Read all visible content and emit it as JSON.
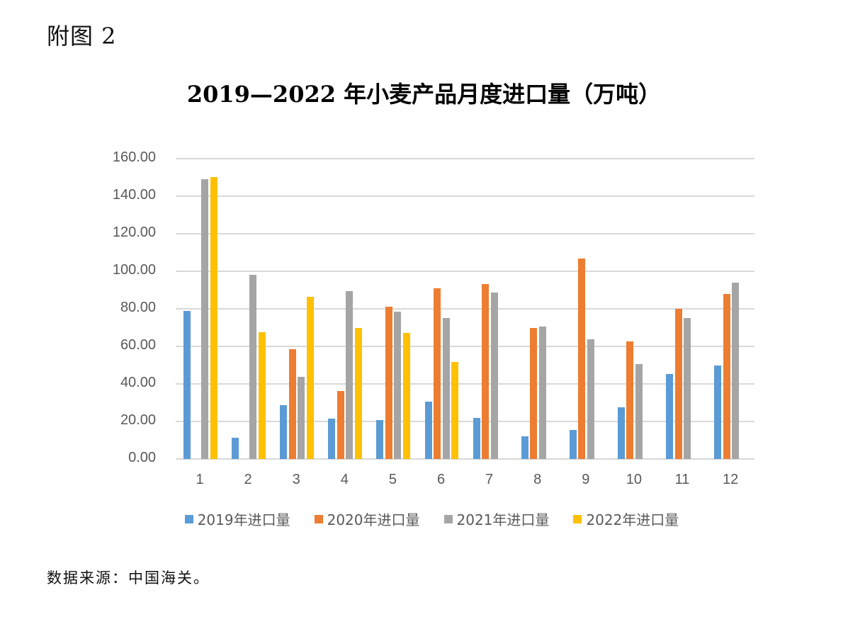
{
  "figure_label": "附图 2",
  "title": "2019—2022 年小麦产品月度进口量（万吨）",
  "source_note": "数据来源：中国海关。",
  "colors": {
    "2019": "#5B9BD5",
    "2020": "#ED7D31",
    "2021": "#A5A5A5",
    "2022": "#FFC000"
  },
  "chart_data": {
    "type": "bar",
    "title": "2019—2022 年小麦产品月度进口量（万吨）",
    "xlabel": "",
    "ylabel": "",
    "ylim": [
      0,
      160
    ],
    "yticks": [
      "0.00",
      "20.00",
      "40.00",
      "60.00",
      "80.00",
      "100.00",
      "120.00",
      "140.00",
      "160.00"
    ],
    "grid": true,
    "legend_position": "bottom",
    "categories": [
      "1",
      "2",
      "3",
      "4",
      "5",
      "6",
      "7",
      "8",
      "9",
      "10",
      "11",
      "12"
    ],
    "series": [
      {
        "name": "2019年进口量",
        "color": "#5B9BD5",
        "values": [
          78.8,
          11.5,
          28.5,
          21.5,
          20.8,
          30.6,
          22.0,
          12.2,
          15.6,
          27.6,
          45.3,
          49.7
        ]
      },
      {
        "name": "2020年进口量",
        "color": "#ED7D31",
        "values": [
          null,
          null,
          58.5,
          36.2,
          81.2,
          90.9,
          93.2,
          70.0,
          106.8,
          62.8,
          79.9,
          88.0
        ]
      },
      {
        "name": "2021年进口量",
        "color": "#A5A5A5",
        "values": [
          149.0,
          98.0,
          43.7,
          89.3,
          78.4,
          75.0,
          88.5,
          70.7,
          63.9,
          50.5,
          75.0,
          93.9
        ]
      },
      {
        "name": "2022年进口量",
        "color": "#FFC000",
        "values": [
          150.2,
          67.7,
          86.3,
          69.7,
          67.3,
          51.7,
          null,
          null,
          null,
          null,
          null,
          null
        ]
      }
    ]
  }
}
